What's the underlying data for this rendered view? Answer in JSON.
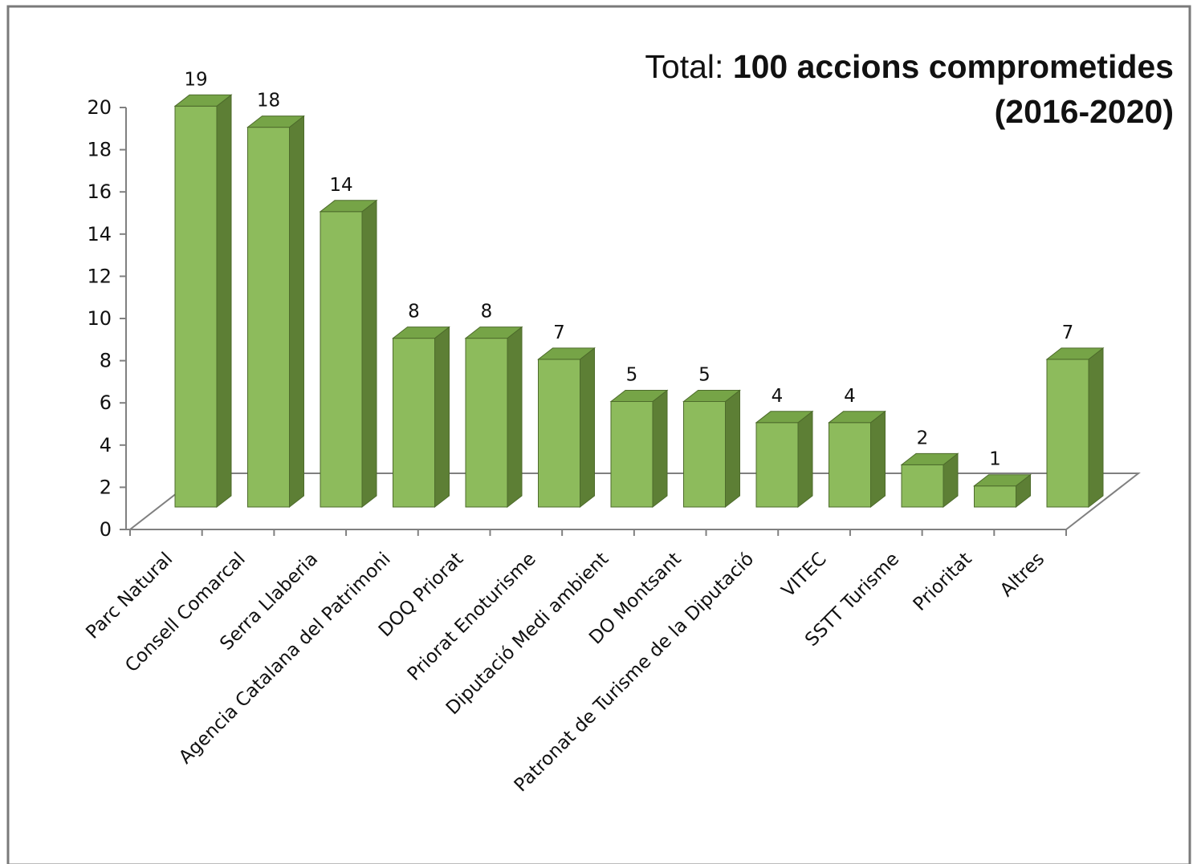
{
  "chart_data": {
    "type": "bar",
    "style": "3d-column",
    "title_prefix": "Total: ",
    "title_bold": "100 accions comprometides",
    "subtitle": "(2016-2020)",
    "categories": [
      "Parc Natural",
      "Consell Comarcal",
      "Serra Llaberia",
      "Agencia Catalana del Patrimoni",
      "DOQ Priorat",
      "Priorat Enoturisme",
      "Diputació Medi ambient",
      "DO Montsant",
      "Patronat de Turisme de la Diputació",
      "VITEC",
      "SSTT Turisme",
      "Prioritat",
      "Altres"
    ],
    "values": [
      19,
      18,
      14,
      8,
      8,
      7,
      5,
      5,
      4,
      4,
      2,
      1,
      7
    ],
    "data_labels": [
      "19",
      "18",
      "14",
      "8",
      "8",
      "7",
      "5",
      "5",
      "4",
      "4",
      "2",
      "1",
      "7"
    ],
    "y_ticks": [
      "0",
      "2",
      "4",
      "6",
      "8",
      "10",
      "12",
      "14",
      "16",
      "18",
      "20"
    ],
    "ylim": [
      0,
      20
    ],
    "xlabel": "",
    "ylabel": "",
    "grid": false,
    "legend": "none",
    "colors": {
      "bar_front": "#8dbb5c",
      "bar_side": "#5d7f35",
      "bar_top": "#76a447",
      "outline": "#4d6b2b",
      "axis": "#808080"
    }
  }
}
